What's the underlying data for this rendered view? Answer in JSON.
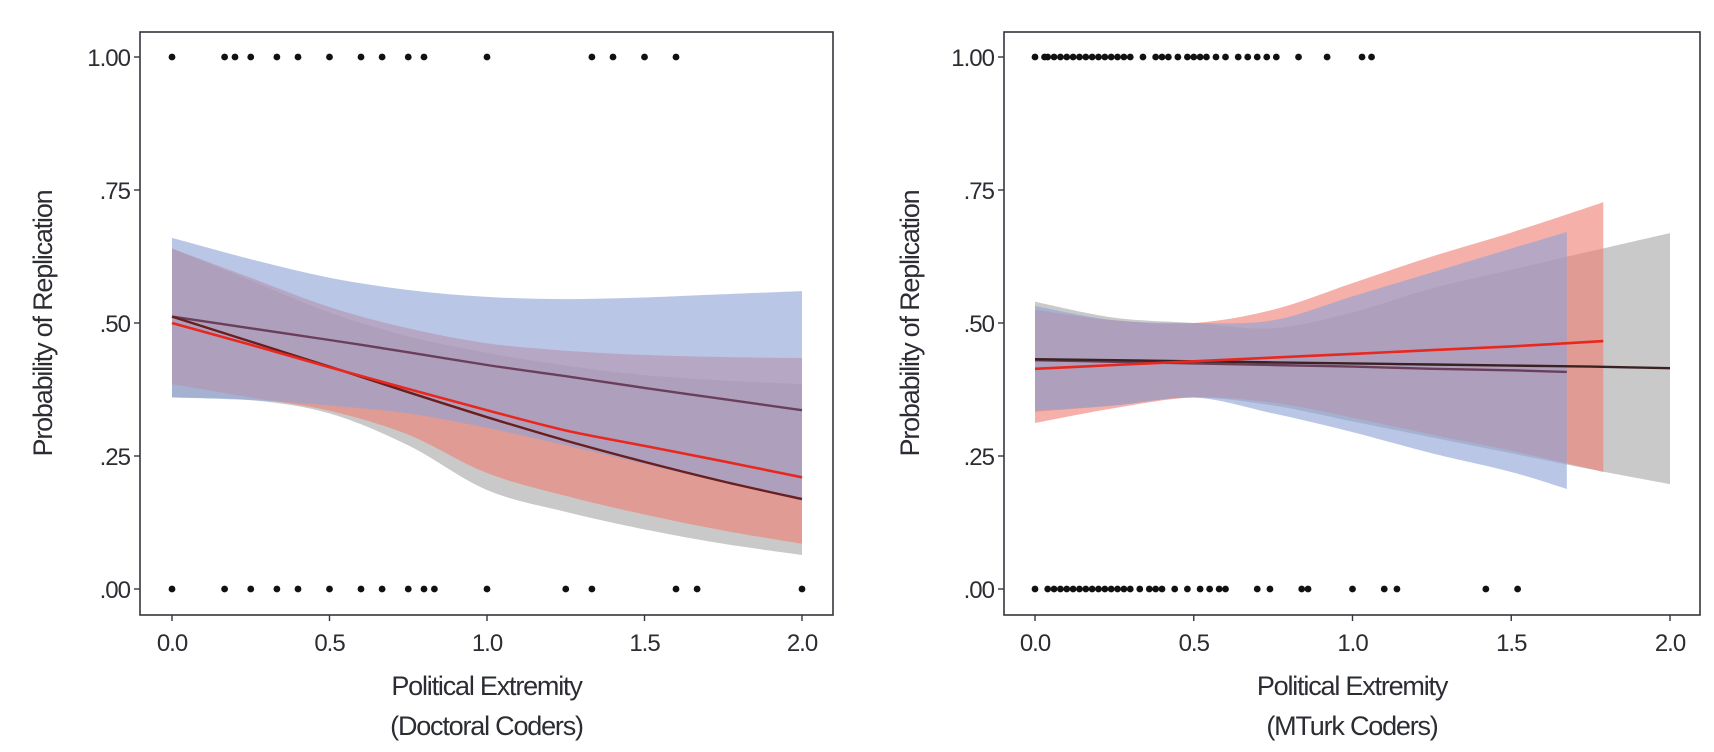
{
  "chart_data": [
    {
      "type": "line",
      "panel": "left",
      "title": "",
      "xlabel": "Political Extremity",
      "xlabel_sub": "(Doctoral Coders)",
      "ylabel": "Probability of Replication",
      "xlim": [
        0,
        2
      ],
      "ylim": [
        0,
        1
      ],
      "xticks": [
        0,
        0.5,
        1,
        1.5,
        2
      ],
      "xtick_labels": [
        "0.0",
        "0.5",
        "1.0",
        "1.5",
        "2.0"
      ],
      "yticks": [
        0,
        0.25,
        0.5,
        0.75,
        1
      ],
      "ytick_labels": [
        ".00",
        ".25",
        ".50",
        ".75",
        "1.00"
      ],
      "grid": false,
      "points_y1": [
        0,
        0.167,
        0.2,
        0.25,
        0.333,
        0.4,
        0.5,
        0.6,
        0.667,
        0.75,
        0.8,
        1.0,
        1.333,
        1.4,
        1.5,
        1.6
      ],
      "points_y0": [
        0,
        0.167,
        0.25,
        0.333,
        0.4,
        0.5,
        0.6,
        0.667,
        0.75,
        0.8,
        0.833,
        1.0,
        1.25,
        1.333,
        1.6,
        1.667,
        2.0
      ],
      "series": [
        {
          "name": "gray",
          "line_color": "#6a1e1e",
          "band_color": "#a8a8a8",
          "x": [
            0,
            0.25,
            0.5,
            0.75,
            1.0,
            1.25,
            1.5,
            1.75,
            2.0
          ],
          "y": [
            0.512,
            0.465,
            0.418,
            0.37,
            0.323,
            0.279,
            0.239,
            0.202,
            0.169
          ],
          "lower": [
            0.36,
            0.355,
            0.33,
            0.27,
            0.186,
            0.145,
            0.112,
            0.085,
            0.064
          ],
          "upper": [
            0.64,
            0.58,
            0.52,
            0.475,
            0.444,
            0.42,
            0.402,
            0.392,
            0.385
          ]
        },
        {
          "name": "red",
          "line_color": "#e8281e",
          "band_color": "#ef8074",
          "x": [
            0,
            0.25,
            0.5,
            0.75,
            1.0,
            1.25,
            1.5,
            1.75,
            2.0
          ],
          "y": [
            0.5,
            0.459,
            0.417,
            0.376,
            0.336,
            0.298,
            0.269,
            0.24,
            0.21
          ],
          "lower": [
            0.385,
            0.36,
            0.335,
            0.29,
            0.218,
            0.175,
            0.14,
            0.11,
            0.085
          ],
          "upper": [
            0.64,
            0.585,
            0.53,
            0.49,
            0.462,
            0.448,
            0.44,
            0.436,
            0.434
          ]
        },
        {
          "name": "blue",
          "line_color": "#6b3f5a",
          "band_color": "#8fa3d6",
          "x": [
            0,
            0.25,
            0.5,
            0.75,
            1.0,
            1.25,
            1.5,
            1.75,
            2.0
          ],
          "y": [
            0.512,
            0.49,
            0.468,
            0.445,
            0.421,
            0.4,
            0.378,
            0.357,
            0.336
          ],
          "lower": [
            0.36,
            0.355,
            0.345,
            0.33,
            0.303,
            0.27,
            0.235,
            0.2,
            0.17
          ],
          "upper": [
            0.66,
            0.62,
            0.585,
            0.562,
            0.549,
            0.545,
            0.548,
            0.554,
            0.56
          ]
        }
      ]
    },
    {
      "type": "line",
      "panel": "right",
      "title": "",
      "xlabel": "Political Extremity",
      "xlabel_sub": "(MTurk Coders)",
      "ylabel": "Probability of Replication",
      "xlim": [
        0,
        2
      ],
      "ylim": [
        0,
        1
      ],
      "xticks": [
        0,
        0.5,
        1,
        1.5,
        2
      ],
      "xtick_labels": [
        "0.0",
        "0.5",
        "1.0",
        "1.5",
        "2.0"
      ],
      "yticks": [
        0,
        0.25,
        0.5,
        0.75,
        1
      ],
      "ytick_labels": [
        ".00",
        ".25",
        ".50",
        ".75",
        "1.00"
      ],
      "grid": false,
      "points_y1": [
        0,
        0.03,
        0.04,
        0.06,
        0.08,
        0.1,
        0.12,
        0.14,
        0.16,
        0.18,
        0.2,
        0.22,
        0.24,
        0.26,
        0.28,
        0.3,
        0.34,
        0.38,
        0.4,
        0.42,
        0.45,
        0.48,
        0.5,
        0.52,
        0.54,
        0.57,
        0.6,
        0.64,
        0.67,
        0.7,
        0.73,
        0.76,
        0.83,
        0.92,
        1.03,
        1.06
      ],
      "points_y0": [
        0,
        0.04,
        0.06,
        0.08,
        0.1,
        0.12,
        0.14,
        0.16,
        0.18,
        0.2,
        0.22,
        0.24,
        0.26,
        0.28,
        0.3,
        0.33,
        0.36,
        0.38,
        0.4,
        0.44,
        0.48,
        0.52,
        0.55,
        0.58,
        0.6,
        0.7,
        0.74,
        0.84,
        0.86,
        1.0,
        1.1,
        1.14,
        1.42,
        1.52
      ],
      "series": [
        {
          "name": "gray",
          "line_color": "#3a2222",
          "band_color": "#a8a8a8",
          "x": [
            0,
            0.25,
            0.5,
            0.75,
            1.0,
            1.25,
            1.5,
            1.75,
            2.0
          ],
          "y": [
            0.432,
            0.43,
            0.428,
            0.426,
            0.424,
            0.422,
            0.42,
            0.418,
            0.415
          ],
          "lower": [
            0.333,
            0.345,
            0.36,
            0.345,
            0.315,
            0.285,
            0.255,
            0.225,
            0.197
          ],
          "upper": [
            0.54,
            0.51,
            0.5,
            0.49,
            0.52,
            0.565,
            0.6,
            0.635,
            0.669
          ]
        },
        {
          "name": "red",
          "line_color": "#e8281e",
          "band_color": "#ef8074",
          "x": [
            0,
            0.25,
            0.5,
            0.75,
            1.0,
            1.25,
            1.5,
            1.79
          ],
          "y": [
            0.414,
            0.421,
            0.428,
            0.435,
            0.442,
            0.449,
            0.456,
            0.466
          ],
          "lower": [
            0.312,
            0.34,
            0.36,
            0.35,
            0.322,
            0.29,
            0.26,
            0.22
          ],
          "upper": [
            0.525,
            0.505,
            0.5,
            0.525,
            0.575,
            0.625,
            0.67,
            0.727
          ]
        },
        {
          "name": "blue",
          "line_color": "#6b3f5a",
          "band_color": "#8fa3d6",
          "x": [
            0,
            0.25,
            0.5,
            0.75,
            1.0,
            1.25,
            1.5,
            1.675
          ],
          "y": [
            0.43,
            0.427,
            0.424,
            0.421,
            0.418,
            0.414,
            0.411,
            0.408
          ],
          "lower": [
            0.335,
            0.345,
            0.36,
            0.33,
            0.295,
            0.255,
            0.22,
            0.188
          ],
          "upper": [
            0.532,
            0.505,
            0.5,
            0.505,
            0.55,
            0.595,
            0.64,
            0.671
          ]
        }
      ]
    }
  ]
}
